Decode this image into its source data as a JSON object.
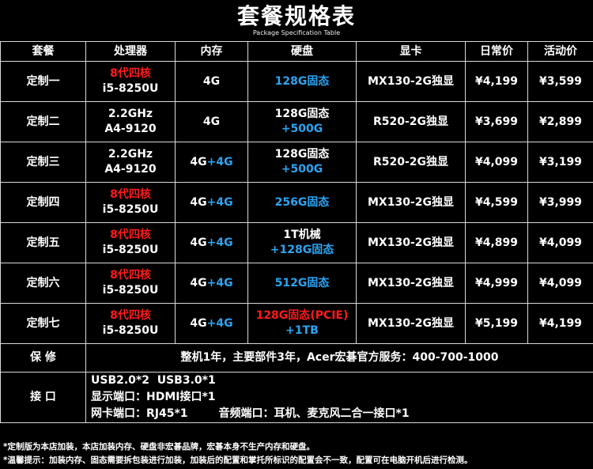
{
  "header": {
    "title": "套餐规格表",
    "subtitle": "Package Specification Table"
  },
  "columns": [
    "套餐",
    "处理器",
    "内存",
    "硬盘",
    "显卡",
    "日常价",
    "活动价"
  ],
  "packages": [
    {
      "name": "定制一",
      "cpu1": "8代四核",
      "cpu2": "i5-8250U",
      "ram1": "4G",
      "ram2": "",
      "disk1": "128G固态",
      "disk2": "",
      "gpu": "MX130-2G独显",
      "price": "¥4,199",
      "sale": "¥3,599"
    },
    {
      "name": "定制二",
      "cpu1": "2.2GHz",
      "cpu2": "A4-9120",
      "ram1": "4G",
      "ram2": "",
      "disk1": "128G固态",
      "disk2": "+500G",
      "gpu": "R520-2G独显",
      "price": "¥3,699",
      "sale": "¥2,899"
    },
    {
      "name": "定制三",
      "cpu1": "2.2GHz",
      "cpu2": "A4-9120",
      "ram1": "4G",
      "ram2": "+4G",
      "disk1": "128G固态",
      "disk2": "+500G",
      "gpu": "R520-2G独显",
      "price": "¥4,099",
      "sale": "¥3,199"
    },
    {
      "name": "定制四",
      "cpu1": "8代四核",
      "cpu2": "i5-8250U",
      "ram1": "4G",
      "ram2": "+4G",
      "disk1": "256G固态",
      "disk2": "",
      "gpu": "MX130-2G独显",
      "price": "¥4,599",
      "sale": "¥3,999"
    },
    {
      "name": "定制五",
      "cpu1": "8代四核",
      "cpu2": "i5-8250U",
      "ram1": "4G",
      "ram2": "+4G",
      "disk1": "1T机械",
      "disk2": "+128G固态",
      "gpu": "MX130-2G独显",
      "price": "¥4,899",
      "sale": "¥4,099"
    },
    {
      "name": "定制六",
      "cpu1": "8代四核",
      "cpu2": "i5-8250U",
      "ram1": "4G",
      "ram2": "+4G",
      "disk1": "512G固态",
      "disk2": "",
      "gpu": "MX130-2G独显",
      "price": "¥4,999",
      "sale": "¥4,099"
    },
    {
      "name": "定制七",
      "cpu1": "8代四核",
      "cpu2": "i5-8250U",
      "ram1": "4G",
      "ram2": "+4G",
      "disk1": "128G固态(PCIE)",
      "disk2": "+1TB",
      "gpu": "MX130-2G独显",
      "price": "¥5,199",
      "sale": "¥4,199"
    }
  ],
  "warranty": {
    "label": "保 修",
    "text": "整机1年，主要部件3年，Acer宏碁官方服务：400-700-1000"
  },
  "ports": {
    "label": "接 口",
    "lines": [
      "USB2.0*2  USB3.0*1",
      "显示端口：HDMI接口*1",
      "网卡端口：RJ45*1        音频端口：耳机、麦克风二合一接口*1"
    ]
  },
  "notes": [
    "*定制版为本店加装，本店加装内存、硬盘非宏碁品牌，宏碁本身不生产内存和硬盘。",
    "*温馨提示：加装内存、固态需要拆包装进行加装，加装后的配置和掌托所标识的配置会不一致，配置可在电脑开机后进行检测。"
  ],
  "colors": {
    "background": "#000000",
    "text": "#ffffff",
    "accent_red": "#ff1a1a",
    "accent_blue": "#2aa5f3",
    "grid": "#d9d9d9"
  }
}
